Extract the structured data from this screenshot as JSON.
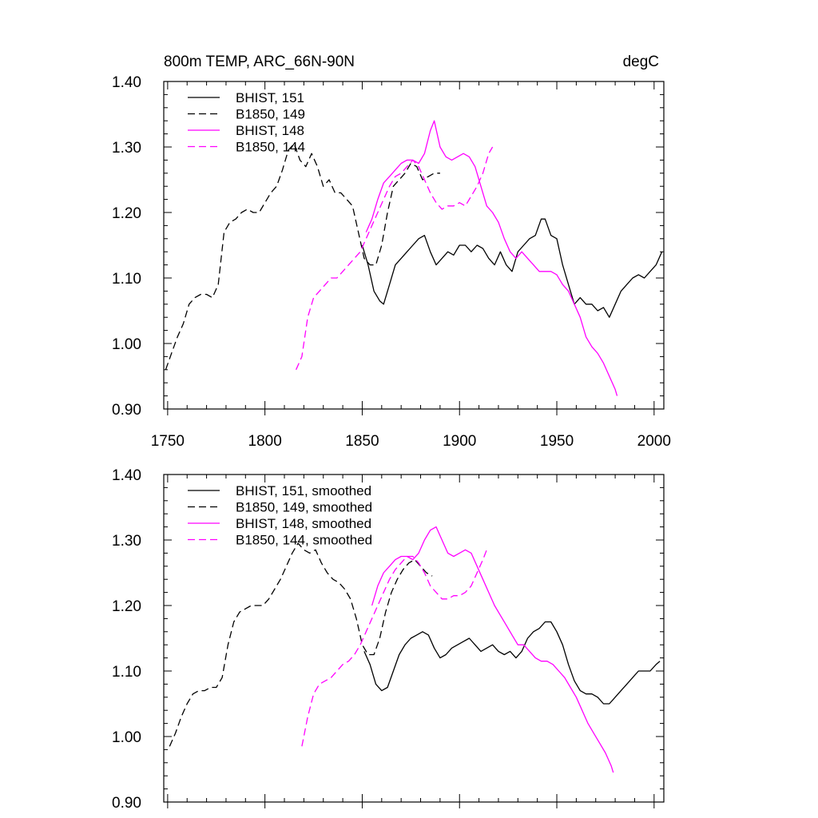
{
  "figure": {
    "title_left": "800m TEMP, ARC_66N-90N",
    "title_right": "degC"
  },
  "colors": {
    "black": "#000000",
    "magenta": "#ff00ff"
  },
  "chart_data": [
    {
      "type": "line",
      "title": "800m TEMP, ARC_66N-90N",
      "units": "degC",
      "xlim": [
        1748,
        2005
      ],
      "ylim": [
        0.9,
        1.4
      ],
      "xticks": [
        1750,
        1800,
        1850,
        1900,
        1950,
        2000
      ],
      "xtick_labels": [
        "1750",
        "1800",
        "1850",
        "1900",
        "1950",
        "2000"
      ],
      "yticks": [
        0.9,
        1.0,
        1.1,
        1.2,
        1.3,
        1.4
      ],
      "ytick_labels": [
        "0.90",
        "1.00",
        "1.10",
        "1.20",
        "1.30",
        "1.40"
      ],
      "series": [
        {
          "name": "BHIST, 151",
          "color": "#000000",
          "dash": "solid",
          "x": [
            1850,
            1853,
            1856,
            1859,
            1861,
            1864,
            1867,
            1870,
            1873,
            1876,
            1879,
            1882,
            1885,
            1888,
            1891,
            1894,
            1897,
            1900,
            1903,
            1906,
            1909,
            1912,
            1915,
            1918,
            1921,
            1924,
            1927,
            1930,
            1933,
            1936,
            1939,
            1942,
            1944,
            1947,
            1950,
            1953,
            1956,
            1959,
            1962,
            1965,
            1968,
            1971,
            1974,
            1977,
            1980,
            1983,
            1986,
            1989,
            1992,
            1995,
            1998,
            2001,
            2004
          ],
          "y": [
            1.15,
            1.12,
            1.08,
            1.065,
            1.06,
            1.09,
            1.12,
            1.13,
            1.14,
            1.15,
            1.16,
            1.165,
            1.14,
            1.12,
            1.13,
            1.14,
            1.135,
            1.15,
            1.15,
            1.14,
            1.15,
            1.145,
            1.13,
            1.12,
            1.14,
            1.12,
            1.11,
            1.14,
            1.15,
            1.16,
            1.165,
            1.19,
            1.19,
            1.165,
            1.16,
            1.12,
            1.09,
            1.06,
            1.07,
            1.06,
            1.06,
            1.05,
            1.055,
            1.04,
            1.06,
            1.08,
            1.09,
            1.1,
            1.105,
            1.1,
            1.11,
            1.12,
            1.14
          ]
        },
        {
          "name": "B1850, 149",
          "color": "#000000",
          "dash": "dashed",
          "x": [
            1749,
            1752,
            1755,
            1758,
            1761,
            1764,
            1767,
            1770,
            1773,
            1776,
            1779,
            1782,
            1785,
            1788,
            1791,
            1794,
            1797,
            1800,
            1803,
            1806,
            1809,
            1812,
            1815,
            1818,
            1821,
            1824,
            1827,
            1830,
            1833,
            1836,
            1839,
            1842,
            1845,
            1848,
            1851,
            1854,
            1857,
            1860,
            1863,
            1866,
            1869,
            1872,
            1875,
            1878,
            1881,
            1884,
            1887,
            1890
          ],
          "y": [
            0.96,
            0.985,
            1.01,
            1.03,
            1.06,
            1.07,
            1.075,
            1.075,
            1.07,
            1.09,
            1.17,
            1.185,
            1.19,
            1.2,
            1.205,
            1.2,
            1.2,
            1.215,
            1.23,
            1.24,
            1.265,
            1.295,
            1.305,
            1.28,
            1.27,
            1.29,
            1.27,
            1.24,
            1.25,
            1.23,
            1.23,
            1.22,
            1.21,
            1.17,
            1.13,
            1.12,
            1.12,
            1.15,
            1.2,
            1.24,
            1.25,
            1.26,
            1.275,
            1.27,
            1.25,
            1.255,
            1.26,
            1.26
          ]
        },
        {
          "name": "BHIST, 148",
          "color": "#ff00ff",
          "dash": "solid",
          "x": [
            1852,
            1855,
            1858,
            1861,
            1864,
            1867,
            1870,
            1873,
            1876,
            1879,
            1882,
            1885,
            1887,
            1890,
            1893,
            1896,
            1899,
            1902,
            1905,
            1908,
            1911,
            1914,
            1917,
            1920,
            1923,
            1926,
            1929,
            1932,
            1935,
            1938,
            1941,
            1944,
            1947,
            1950,
            1953,
            1956,
            1959,
            1962,
            1965,
            1968,
            1971,
            1974,
            1977,
            1980,
            1981
          ],
          "y": [
            1.17,
            1.19,
            1.22,
            1.245,
            1.255,
            1.265,
            1.275,
            1.28,
            1.28,
            1.275,
            1.29,
            1.325,
            1.34,
            1.3,
            1.285,
            1.28,
            1.285,
            1.29,
            1.285,
            1.27,
            1.24,
            1.21,
            1.2,
            1.185,
            1.16,
            1.14,
            1.13,
            1.14,
            1.13,
            1.12,
            1.11,
            1.11,
            1.11,
            1.105,
            1.09,
            1.08,
            1.06,
            1.04,
            1.01,
            0.995,
            0.985,
            0.97,
            0.95,
            0.93,
            0.92
          ]
        },
        {
          "name": "B1850, 144",
          "color": "#ff00ff",
          "dash": "dashed",
          "x": [
            1816,
            1819,
            1822,
            1825,
            1828,
            1831,
            1834,
            1837,
            1840,
            1843,
            1846,
            1849,
            1852,
            1855,
            1858,
            1861,
            1864,
            1867,
            1870,
            1873,
            1876,
            1879,
            1882,
            1885,
            1888,
            1891,
            1894,
            1897,
            1900,
            1903,
            1906,
            1909,
            1912,
            1915,
            1917
          ],
          "y": [
            0.96,
            0.98,
            1.04,
            1.07,
            1.08,
            1.09,
            1.1,
            1.1,
            1.11,
            1.12,
            1.13,
            1.14,
            1.16,
            1.18,
            1.2,
            1.22,
            1.24,
            1.255,
            1.26,
            1.27,
            1.28,
            1.27,
            1.25,
            1.23,
            1.215,
            1.205,
            1.21,
            1.21,
            1.215,
            1.21,
            1.225,
            1.24,
            1.26,
            1.29,
            1.3
          ]
        }
      ]
    },
    {
      "type": "line",
      "title": "",
      "units": "",
      "xlim": [
        1748,
        2005
      ],
      "ylim": [
        0.9,
        1.4
      ],
      "yticks": [
        0.9,
        1.0,
        1.1,
        1.2,
        1.3,
        1.4
      ],
      "ytick_labels": [
        "0.90",
        "1.00",
        "1.10",
        "1.20",
        "1.30",
        "1.40"
      ],
      "series": [
        {
          "name": "BHIST, 151, smoothed",
          "color": "#000000",
          "dash": "solid",
          "x": [
            1851,
            1854,
            1857,
            1860,
            1863,
            1866,
            1869,
            1872,
            1875,
            1878,
            1881,
            1884,
            1887,
            1890,
            1893,
            1896,
            1899,
            1902,
            1905,
            1908,
            1911,
            1914,
            1917,
            1920,
            1923,
            1926,
            1929,
            1932,
            1935,
            1938,
            1941,
            1944,
            1947,
            1950,
            1953,
            1956,
            1959,
            1962,
            1965,
            1968,
            1971,
            1974,
            1977,
            1980,
            1983,
            1986,
            1989,
            1992,
            1995,
            1998,
            2001,
            2003
          ],
          "y": [
            1.13,
            1.11,
            1.08,
            1.07,
            1.075,
            1.1,
            1.125,
            1.14,
            1.15,
            1.155,
            1.16,
            1.155,
            1.135,
            1.12,
            1.125,
            1.135,
            1.14,
            1.145,
            1.15,
            1.14,
            1.13,
            1.135,
            1.14,
            1.13,
            1.125,
            1.13,
            1.12,
            1.13,
            1.15,
            1.16,
            1.165,
            1.175,
            1.175,
            1.16,
            1.14,
            1.11,
            1.085,
            1.07,
            1.065,
            1.065,
            1.06,
            1.05,
            1.05,
            1.06,
            1.07,
            1.08,
            1.09,
            1.1,
            1.1,
            1.1,
            1.11,
            1.115
          ]
        },
        {
          "name": "B1850, 149, smoothed",
          "color": "#000000",
          "dash": "dashed",
          "x": [
            1751,
            1754,
            1757,
            1760,
            1763,
            1766,
            1769,
            1772,
            1775,
            1778,
            1781,
            1784,
            1787,
            1790,
            1793,
            1796,
            1799,
            1802,
            1805,
            1808,
            1811,
            1814,
            1817,
            1820,
            1823,
            1826,
            1829,
            1832,
            1835,
            1838,
            1841,
            1844,
            1847,
            1850,
            1853,
            1856,
            1859,
            1862,
            1865,
            1868,
            1871,
            1874,
            1877,
            1880,
            1883,
            1886
          ],
          "y": [
            0.985,
            1.005,
            1.03,
            1.05,
            1.065,
            1.07,
            1.07,
            1.075,
            1.075,
            1.09,
            1.14,
            1.175,
            1.19,
            1.195,
            1.2,
            1.2,
            1.2,
            1.21,
            1.225,
            1.24,
            1.26,
            1.28,
            1.295,
            1.285,
            1.28,
            1.285,
            1.265,
            1.25,
            1.24,
            1.235,
            1.225,
            1.21,
            1.18,
            1.14,
            1.125,
            1.125,
            1.15,
            1.19,
            1.22,
            1.24,
            1.255,
            1.265,
            1.27,
            1.26,
            1.25,
            1.245
          ]
        },
        {
          "name": "BHIST, 148, smoothed",
          "color": "#ff00ff",
          "dash": "solid",
          "x": [
            1855,
            1858,
            1861,
            1864,
            1867,
            1870,
            1873,
            1876,
            1879,
            1882,
            1885,
            1888,
            1891,
            1894,
            1897,
            1900,
            1903,
            1906,
            1909,
            1912,
            1915,
            1918,
            1921,
            1924,
            1927,
            1930,
            1933,
            1936,
            1939,
            1942,
            1945,
            1948,
            1951,
            1954,
            1957,
            1960,
            1963,
            1966,
            1969,
            1972,
            1975,
            1978,
            1979
          ],
          "y": [
            1.2,
            1.23,
            1.25,
            1.26,
            1.27,
            1.275,
            1.275,
            1.27,
            1.28,
            1.3,
            1.315,
            1.32,
            1.3,
            1.28,
            1.275,
            1.28,
            1.285,
            1.28,
            1.26,
            1.24,
            1.22,
            1.2,
            1.185,
            1.17,
            1.155,
            1.14,
            1.14,
            1.13,
            1.12,
            1.115,
            1.115,
            1.11,
            1.1,
            1.09,
            1.075,
            1.06,
            1.04,
            1.02,
            1.005,
            0.99,
            0.975,
            0.955,
            0.945
          ]
        },
        {
          "name": "B1850, 144, smoothed",
          "color": "#ff00ff",
          "dash": "dashed",
          "x": [
            1819,
            1822,
            1825,
            1828,
            1831,
            1834,
            1837,
            1840,
            1843,
            1846,
            1849,
            1852,
            1855,
            1858,
            1861,
            1864,
            1867,
            1870,
            1873,
            1876,
            1879,
            1882,
            1885,
            1888,
            1891,
            1894,
            1897,
            1900,
            1903,
            1906,
            1909,
            1912,
            1914
          ],
          "y": [
            0.985,
            1.03,
            1.065,
            1.08,
            1.085,
            1.09,
            1.1,
            1.11,
            1.115,
            1.125,
            1.14,
            1.16,
            1.18,
            1.2,
            1.22,
            1.24,
            1.255,
            1.265,
            1.275,
            1.275,
            1.265,
            1.25,
            1.23,
            1.22,
            1.21,
            1.21,
            1.215,
            1.215,
            1.22,
            1.23,
            1.25,
            1.27,
            1.285
          ]
        }
      ]
    }
  ]
}
